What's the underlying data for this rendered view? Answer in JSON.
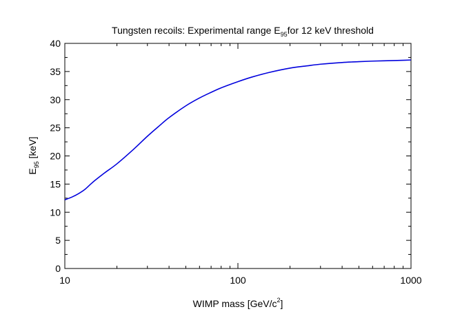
{
  "chart_data": {
    "type": "line",
    "title": {
      "prefix": "Tungsten recoils: Experimental range E",
      "sub": "95",
      "suffix": "for 12 keV threshold"
    },
    "xlabel": {
      "prefix": "WIMP mass [GeV/c",
      "sup": "2",
      "suffix": "]"
    },
    "ylabel": {
      "prefix": "E",
      "sub": "95",
      "suffix": " [keV]"
    },
    "x_scale": "log",
    "xlim": [
      10,
      1000
    ],
    "ylim": [
      0,
      40
    ],
    "x_major_ticks": [
      10,
      100,
      1000
    ],
    "x_tick_labels": [
      "10",
      "100",
      "1000"
    ],
    "y_ticks": [
      0,
      5,
      10,
      15,
      20,
      25,
      30,
      35,
      40
    ],
    "y_tick_labels": [
      "0",
      "5",
      "10",
      "15",
      "20",
      "25",
      "30",
      "35",
      "40"
    ],
    "series": [
      {
        "name": "E95",
        "color": "#0000dd",
        "x": [
          10,
          11,
          12,
          13,
          14,
          15,
          17,
          20,
          25,
          30,
          35,
          40,
          50,
          60,
          70,
          80,
          100,
          120,
          150,
          200,
          250,
          300,
          400,
          500,
          600,
          700,
          800,
          900,
          1000
        ],
        "y": [
          12.2,
          12.7,
          13.3,
          14.0,
          14.9,
          15.7,
          17.0,
          18.6,
          21.2,
          23.5,
          25.3,
          26.8,
          28.9,
          30.3,
          31.3,
          32.1,
          33.2,
          34.0,
          34.8,
          35.6,
          36.0,
          36.3,
          36.6,
          36.75,
          36.85,
          36.9,
          36.95,
          37.0,
          37.05
        ]
      }
    ]
  }
}
